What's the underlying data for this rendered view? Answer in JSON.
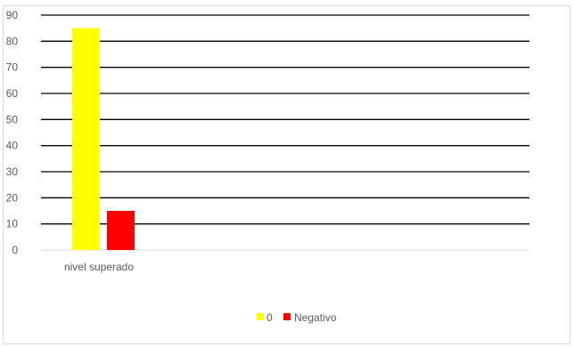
{
  "chart_data": {
    "type": "bar",
    "categories": [
      "nivel superado"
    ],
    "series": [
      {
        "name": "0",
        "values": [
          85
        ],
        "color": "#ffff00"
      },
      {
        "name": "Negativo",
        "values": [
          15
        ],
        "color": "#ff0000"
      }
    ],
    "ylim": [
      0,
      90
    ],
    "yticks": [
      "0",
      "10",
      "20",
      "30",
      "40",
      "50",
      "60",
      "70",
      "80",
      "90"
    ],
    "grid": true,
    "legend_position": "bottom"
  }
}
